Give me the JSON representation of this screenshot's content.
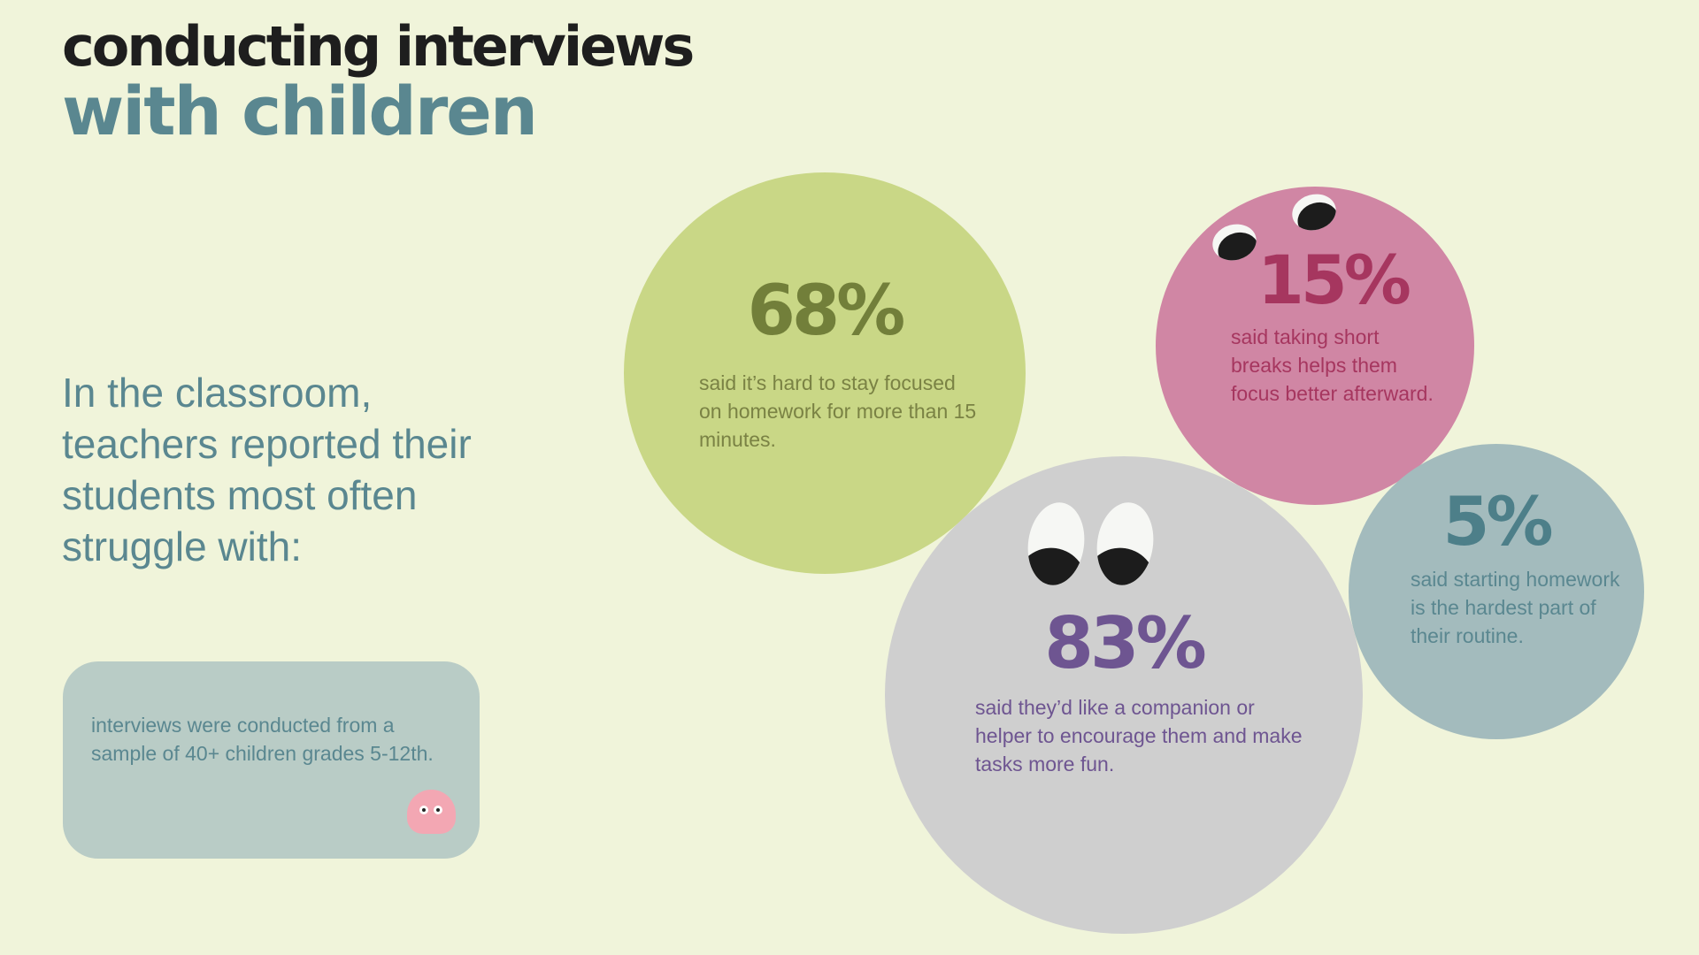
{
  "header": {
    "title_line1": "conducting interviews",
    "title_line2": "with children"
  },
  "intro": {
    "text": "In the classroom, teachers reported their students most often struggle with:"
  },
  "note": {
    "text": "interviews were conducted from a sample of 40+ children grades 5-12th.",
    "icon": "ghost-icon"
  },
  "stats": [
    {
      "value": "68%",
      "description": "said it’s hard to stay focused on homework for more than 15 minutes.",
      "color": "#c9d786"
    },
    {
      "value": "15%",
      "description": "said taking short breaks helps them focus better afterward.",
      "color": "#d086a4"
    },
    {
      "value": "5%",
      "description": "said starting homework is the hardest part of their routine.",
      "color": "#a3bbbd"
    },
    {
      "value": "83%",
      "description": "said they’d like a companion or helper to encourage them and make tasks more fun.",
      "color": "#cfcfcf"
    }
  ]
}
